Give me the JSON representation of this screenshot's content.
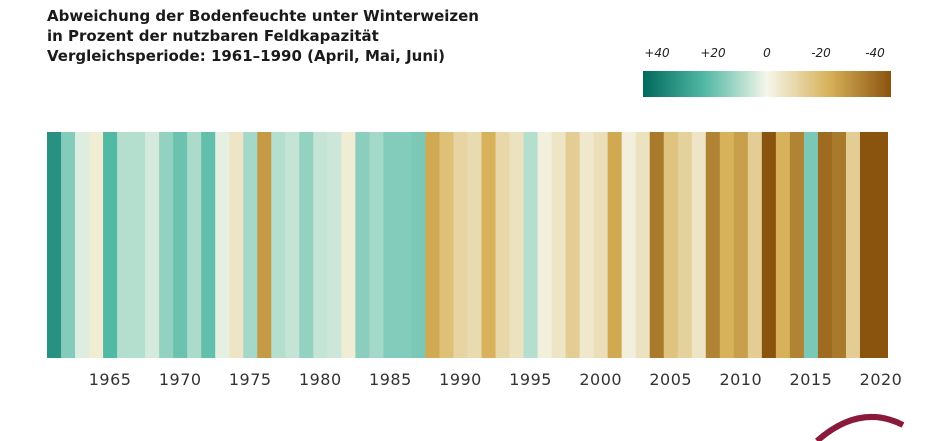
{
  "chart_data": {
    "type": "heatmap",
    "title_lines": [
      "Abweichung der Bodenfeuchte unter Winterweizen",
      "in Prozent der nutzbaren Feldkapazität",
      "Vergleichsperiode: 1961–1990 (April, Mai, Juni)"
    ],
    "xlabel": "",
    "ylabel": "",
    "x_range": [
      1961,
      2020
    ],
    "x_ticks": [
      1965,
      1970,
      1975,
      1980,
      1985,
      1990,
      1995,
      2000,
      2005,
      2010,
      2015,
      2020
    ],
    "x_tick_labels": [
      "1965",
      "1970",
      "1975",
      "1980",
      "1985",
      "1990",
      "1995",
      "2000",
      "2005",
      "2010",
      "2015",
      "2020"
    ],
    "years": [
      1961,
      1962,
      1963,
      1964,
      1965,
      1966,
      1967,
      1968,
      1969,
      1970,
      1971,
      1972,
      1973,
      1974,
      1975,
      1976,
      1977,
      1978,
      1979,
      1980,
      1981,
      1982,
      1983,
      1984,
      1985,
      1986,
      1987,
      1988,
      1989,
      1990,
      1991,
      1992,
      1993,
      1994,
      1995,
      1996,
      1997,
      1998,
      1999,
      2000,
      2001,
      2002,
      2003,
      2004,
      2005,
      2006,
      2007,
      2008,
      2009,
      2010,
      2011,
      2012,
      2013,
      2014,
      2015,
      2016,
      2017,
      2018,
      2019,
      2020
    ],
    "values": [
      30,
      14,
      3,
      -3,
      20,
      8,
      8,
      4,
      12,
      17,
      9,
      18,
      2,
      -5,
      10,
      -25,
      8,
      6,
      12,
      6,
      5,
      -3,
      13,
      10,
      14,
      14,
      15,
      -22,
      -16,
      -10,
      -8,
      -20,
      -9,
      -6,
      8,
      -2,
      -5,
      -12,
      -4,
      -7,
      -22,
      -2,
      -6,
      -32,
      -15,
      -11,
      -5,
      -30,
      -20,
      -24,
      -12,
      -45,
      -20,
      -30,
      15,
      -35,
      -32,
      -12,
      -40,
      -50
    ],
    "color_scale": {
      "labels": [
        "+40",
        "+20",
        "0",
        "-20",
        "-40"
      ],
      "values": [
        40,
        20,
        0,
        -20,
        -40
      ],
      "colors": [
        "#00695c",
        "#52b9a5",
        "#f5f6ea",
        "#d8b25a",
        "#8a530e"
      ]
    }
  }
}
